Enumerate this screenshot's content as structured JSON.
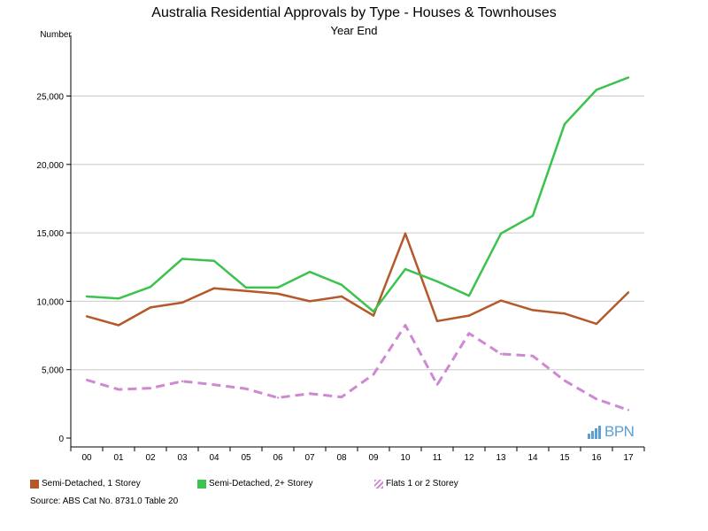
{
  "chart_data": {
    "type": "line",
    "title": "Australia Residential Approvals by Type - Houses & Townhouses",
    "subtitle": "Year End",
    "ylabel": "Number",
    "xlabel": "",
    "categories": [
      "00",
      "01",
      "02",
      "03",
      "04",
      "05",
      "06",
      "07",
      "08",
      "09",
      "10",
      "11",
      "12",
      "13",
      "14",
      "15",
      "16",
      "17"
    ],
    "ylim": [
      0,
      28000
    ],
    "yticks": [
      0,
      5000,
      10000,
      15000,
      20000,
      25000
    ],
    "ytick_labels": [
      "0",
      "5,000",
      "10,000",
      "15,000",
      "20,000",
      "25,000"
    ],
    "grid": true,
    "legend_position": "bottom",
    "series": [
      {
        "name": "Semi-Detached, 1 Storey",
        "color": "#b5592a",
        "style": "solid",
        "values": [
          8900,
          8250,
          9550,
          9900,
          10950,
          10750,
          10550,
          10000,
          10350,
          8950,
          14950,
          8550,
          8950,
          10050,
          9350,
          9100,
          8350,
          10650
        ]
      },
      {
        "name": "Semi-Detached, 2+ Storey",
        "color": "#3cc24e",
        "style": "solid",
        "values": [
          10350,
          10200,
          11050,
          13100,
          12950,
          11000,
          11000,
          12150,
          11200,
          9250,
          12350,
          11450,
          10400,
          14950,
          16250,
          22950,
          25450,
          26350
        ]
      },
      {
        "name": "Flats 1 or 2 Storey",
        "color": "#cf88d2",
        "style": "dashed",
        "values": [
          4250,
          3550,
          3650,
          4150,
          3900,
          3600,
          2950,
          3250,
          3000,
          4650,
          8250,
          3900,
          7650,
          6150,
          6000,
          4200,
          2850,
          2050
        ]
      }
    ]
  },
  "source": "Source: ABS Cat No. 8731.0 Table 20",
  "logo": {
    "text": "BPN",
    "color": "#5b9fd3"
  }
}
